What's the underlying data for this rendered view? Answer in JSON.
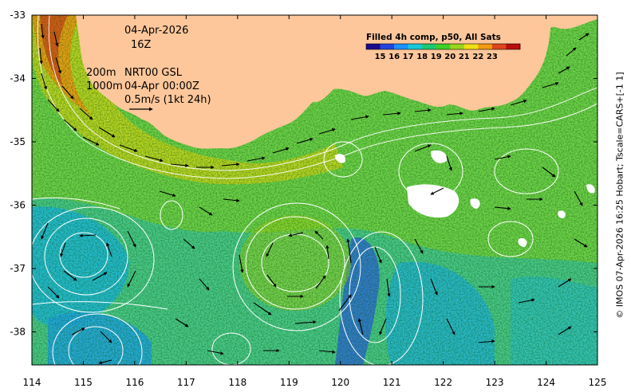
{
  "map": {
    "date_label": "04-Apr-2026",
    "hour_label": "16Z",
    "depth_200": "200m",
    "depth_1000": "1000m",
    "product_label": "NRT00 GSL",
    "current_date": "04-Apr 00:00Z",
    "scale_label": "0.5m/s (1kt 24h)",
    "colorbar": {
      "title": "Filled 4h comp, p50, All Sats",
      "labels": [
        "15",
        "16",
        "17",
        "18",
        "19",
        "20",
        "21",
        "22",
        "23"
      ],
      "colors": [
        "#1a0a8c",
        "#2244dd",
        "#1e90ff",
        "#19c8d8",
        "#1ec873",
        "#3ecf2a",
        "#9ad41e",
        "#f0e012",
        "#f29a10",
        "#e0441a",
        "#b80e0e"
      ]
    },
    "x_ticks": [
      "114",
      "115",
      "116",
      "117",
      "118",
      "119",
      "120",
      "121",
      "122",
      "123",
      "124",
      "125"
    ],
    "y_ticks": [
      "-33",
      "-34",
      "-35",
      "-36",
      "-37",
      "-38"
    ],
    "side_caption": "© IMOS 07-Apr-2026 16:25 Hobart; Tscale=CARS+[-1 1]",
    "land_color": "#fdc79b",
    "ocean_color": "#6fd24a",
    "cloud_color": "#ffffff"
  }
}
